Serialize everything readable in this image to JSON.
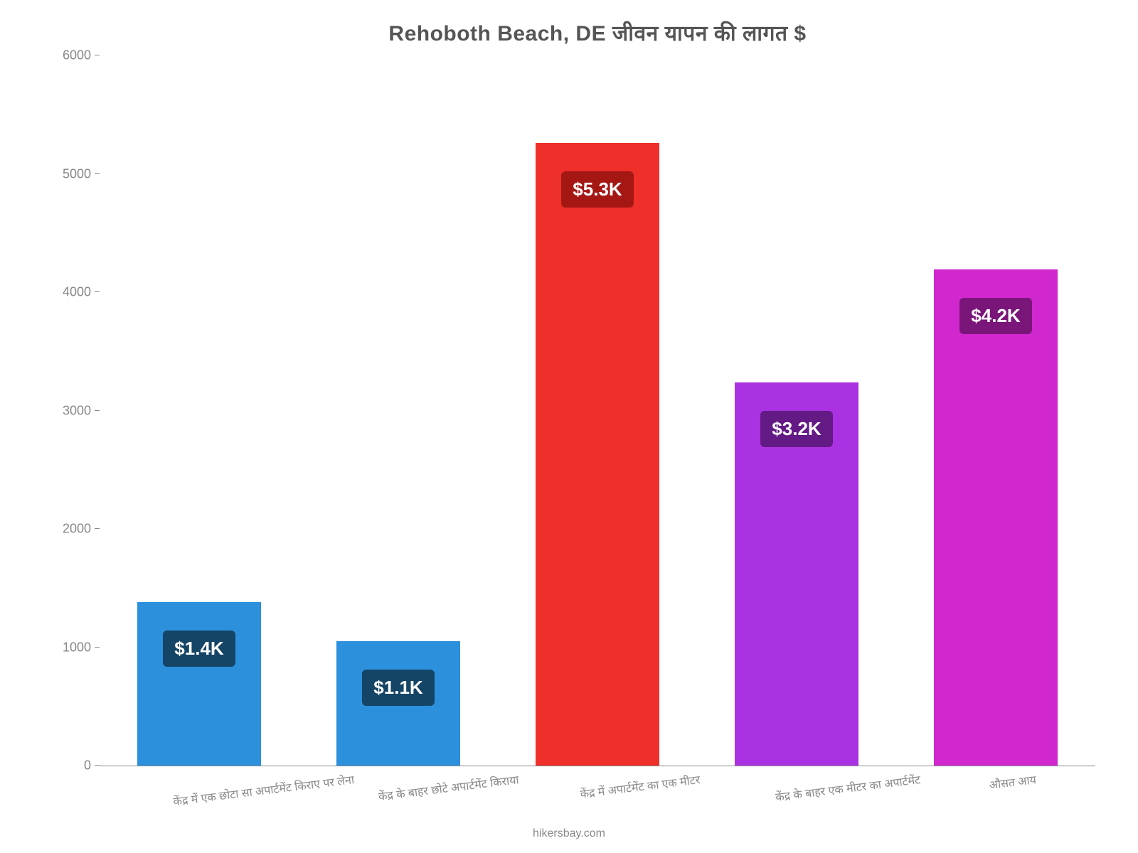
{
  "chart": {
    "type": "bar",
    "title": "Rehoboth Beach, DE जीवन    यापन    की    लागत    $",
    "title_fontsize": 30,
    "title_color": "#555555",
    "background_color": "#ffffff",
    "ylim": [
      0,
      6000
    ],
    "ytick_step": 1000,
    "yticks": [
      "0",
      "1000",
      "2000",
      "3000",
      "4000",
      "5000",
      "6000"
    ],
    "ytick_fontsize": 18,
    "ytick_color": "#888888",
    "xlabel_fontsize": 16,
    "xlabel_color": "#888888",
    "xlabel_rotation_deg": -7,
    "bar_width_ratio": 0.62,
    "categories": [
      "केंद्र में एक छोटा सा अपार्टमेंट किराए पर लेना",
      "केंद्र के बाहर छोटे अपार्टमेंट किराया",
      "केंद्र में अपार्टमेंट का एक मीटर",
      "केंद्र के बाहर एक मीटर का अपार्टमेंट",
      "औसत आय"
    ],
    "values": [
      1380,
      1050,
      5260,
      3240,
      4190
    ],
    "bar_colors": [
      "#2c90dd",
      "#2c90dd",
      "#ef2f2a",
      "#ab32e3",
      "#d127cf"
    ],
    "badge_labels": [
      "$1.4K",
      "$1.1K",
      "$5.3K",
      "$3.2K",
      "$4.2K"
    ],
    "badge_colors": [
      "#144466",
      "#144466",
      "#a41713",
      "#631a85",
      "#7a1679"
    ],
    "badge_fontsize": 26,
    "axis_color": "#888888",
    "footer": "hikersbay.com",
    "footer_fontsize": 16,
    "footer_color": "#888888"
  }
}
